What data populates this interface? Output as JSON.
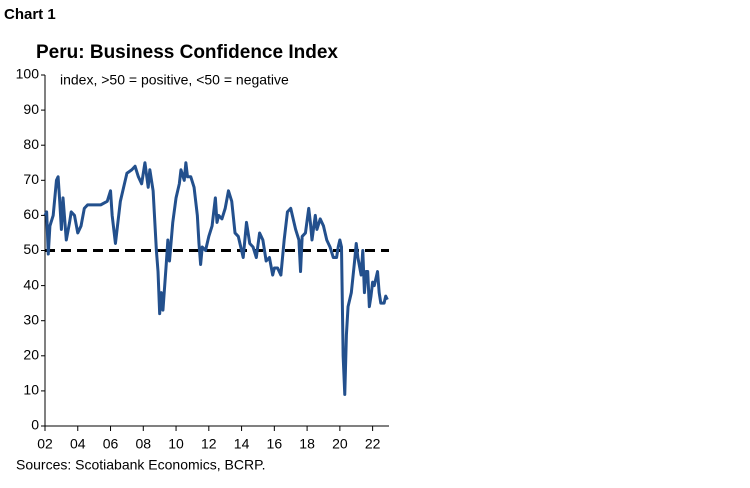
{
  "chart_label": "Chart 1",
  "chart_data": {
    "type": "line",
    "title": "Peru: Business Confidence Index",
    "subtitle": "index, >50 = positive, <50 = negative",
    "source": "Sources: Scotiabank Economics, BCRP.",
    "x": [
      2002.0,
      2002.1,
      2002.2,
      2002.3,
      2002.5,
      2002.7,
      2002.8,
      2002.9,
      2003.0,
      2003.1,
      2003.3,
      2003.5,
      2003.6,
      2003.8,
      2004.0,
      2004.2,
      2004.4,
      2004.6,
      2005.0,
      2005.4,
      2005.8,
      2006.0,
      2006.1,
      2006.3,
      2006.4,
      2006.6,
      2006.8,
      2007.0,
      2007.3,
      2007.5,
      2007.7,
      2007.9,
      2008.0,
      2008.1,
      2008.3,
      2008.4,
      2008.6,
      2008.8,
      2008.9,
      2009.0,
      2009.1,
      2009.2,
      2009.4,
      2009.5,
      2009.6,
      2009.8,
      2010.0,
      2010.2,
      2010.3,
      2010.5,
      2010.6,
      2010.7,
      2010.9,
      2011.1,
      2011.3,
      2011.4,
      2011.5,
      2011.6,
      2011.8,
      2012.0,
      2012.2,
      2012.4,
      2012.5,
      2012.6,
      2012.8,
      2013.0,
      2013.2,
      2013.4,
      2013.6,
      2013.8,
      2014.0,
      2014.1,
      2014.3,
      2014.5,
      2014.7,
      2014.9,
      2015.1,
      2015.3,
      2015.5,
      2015.7,
      2015.9,
      2016.0,
      2016.2,
      2016.4,
      2016.6,
      2016.8,
      2017.0,
      2017.2,
      2017.3,
      2017.5,
      2017.6,
      2017.7,
      2017.9,
      2018.1,
      2018.2,
      2018.3,
      2018.5,
      2018.6,
      2018.8,
      2018.9,
      2019.0,
      2019.2,
      2019.4,
      2019.6,
      2019.8,
      2019.9,
      2020.0,
      2020.1,
      2020.2,
      2020.3,
      2020.4,
      2020.5,
      2020.7,
      2020.9,
      2021.0,
      2021.1,
      2021.3,
      2021.4,
      2021.5,
      2021.6,
      2021.7,
      2021.8,
      2021.9,
      2022.0,
      2022.1,
      2022.3,
      2022.4,
      2022.5,
      2022.7,
      2022.8,
      2022.9
    ],
    "series": [
      {
        "color": "#23508d",
        "values": [
          60,
          61,
          49,
          57,
          60,
          70,
          71,
          64,
          56,
          65,
          53,
          58,
          61,
          60,
          55,
          57,
          62,
          63,
          63,
          63,
          64,
          67,
          60,
          52,
          56,
          64,
          68,
          72,
          73,
          74,
          71,
          69,
          72,
          75,
          68,
          73,
          67,
          50,
          44,
          32,
          38,
          33,
          46,
          53,
          47,
          58,
          65,
          69,
          73,
          70,
          75,
          71,
          71,
          68,
          60,
          52,
          46,
          51,
          50,
          54,
          57,
          65,
          58,
          60,
          59,
          62,
          67,
          64,
          55,
          54,
          50,
          48,
          58,
          52,
          51,
          48,
          55,
          53,
          47,
          48,
          43,
          45,
          45,
          43,
          53,
          61,
          62,
          58,
          56,
          53,
          44,
          54,
          55,
          62,
          58,
          53,
          60,
          56,
          59,
          58,
          57,
          53,
          51,
          48,
          48,
          51,
          53,
          51,
          20,
          9,
          26,
          34,
          38,
          47,
          52,
          48,
          43,
          50,
          38,
          44,
          44,
          34,
          37,
          41,
          40,
          44,
          38,
          35,
          35,
          37,
          36
        ]
      }
    ],
    "reference_line": 50,
    "xlim": [
      2002,
      2023
    ],
    "xticks": [
      {
        "value": 2002,
        "label": "02"
      },
      {
        "value": 2004,
        "label": "04"
      },
      {
        "value": 2006,
        "label": "06"
      },
      {
        "value": 2008,
        "label": "08"
      },
      {
        "value": 2010,
        "label": "10"
      },
      {
        "value": 2012,
        "label": "12"
      },
      {
        "value": 2014,
        "label": "14"
      },
      {
        "value": 2016,
        "label": "16"
      },
      {
        "value": 2018,
        "label": "18"
      },
      {
        "value": 2020,
        "label": "20"
      },
      {
        "value": 2022,
        "label": "22"
      }
    ],
    "ylim": [
      0,
      100
    ],
    "yticks": [
      0,
      10,
      20,
      30,
      40,
      50,
      60,
      70,
      80,
      90,
      100
    ]
  }
}
